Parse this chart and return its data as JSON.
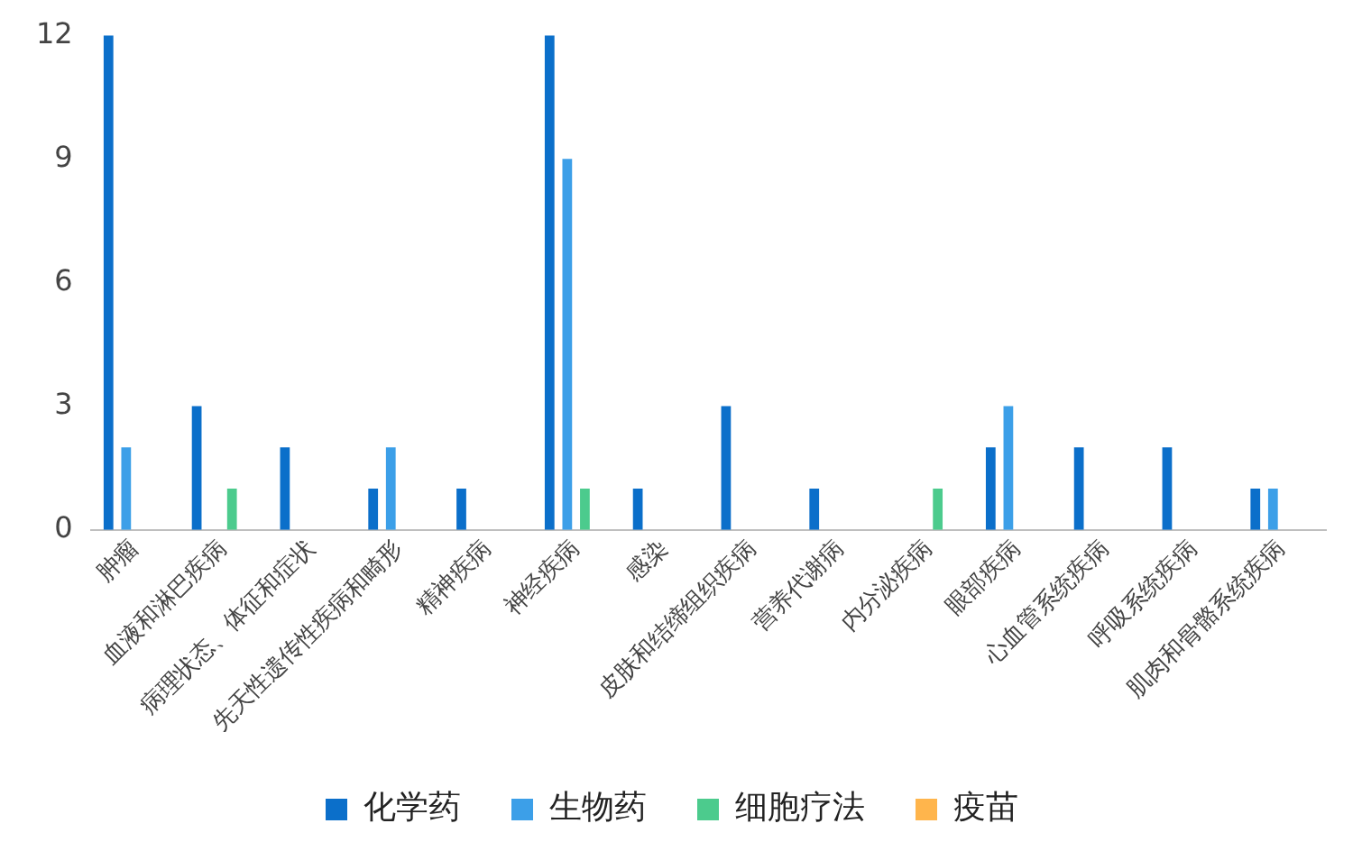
{
  "chart_data": {
    "type": "bar",
    "categories": [
      "肿瘤",
      "血液和淋巴疾病",
      "病理状态、体征和症状",
      "先天性遗传性疾病和畸形",
      "精神疾病",
      "神经疾病",
      "感染",
      "皮肤和结缔组织疾病",
      "营养代谢病",
      "内分泌疾病",
      "眼部疾病",
      "心血管系统疾病",
      "呼吸系统疾病",
      "肌肉和骨骼系统疾病"
    ],
    "series": [
      {
        "name": "化学药",
        "color": "#0b6fca",
        "values": [
          12,
          3,
          2,
          1,
          1,
          12,
          1,
          3,
          1,
          0,
          2,
          2,
          2,
          1
        ]
      },
      {
        "name": "生物药",
        "color": "#3c9fe8",
        "values": [
          2,
          0,
          0,
          2,
          0,
          9,
          0,
          0,
          0,
          0,
          3,
          0,
          0,
          1
        ]
      },
      {
        "name": "细胞疗法",
        "color": "#4ccb8d",
        "values": [
          0,
          1,
          0,
          0,
          0,
          1,
          0,
          0,
          0,
          1,
          0,
          0,
          0,
          0
        ]
      },
      {
        "name": "疫苗",
        "color": "#ffb54c",
        "values": [
          0,
          0,
          0,
          0,
          0,
          0,
          0,
          0,
          0,
          0,
          0,
          0,
          0,
          0
        ]
      }
    ],
    "ylim": [
      0,
      12
    ],
    "yticks": [
      0,
      3,
      6,
      9,
      12
    ],
    "grid": false,
    "legend": "bottom"
  }
}
